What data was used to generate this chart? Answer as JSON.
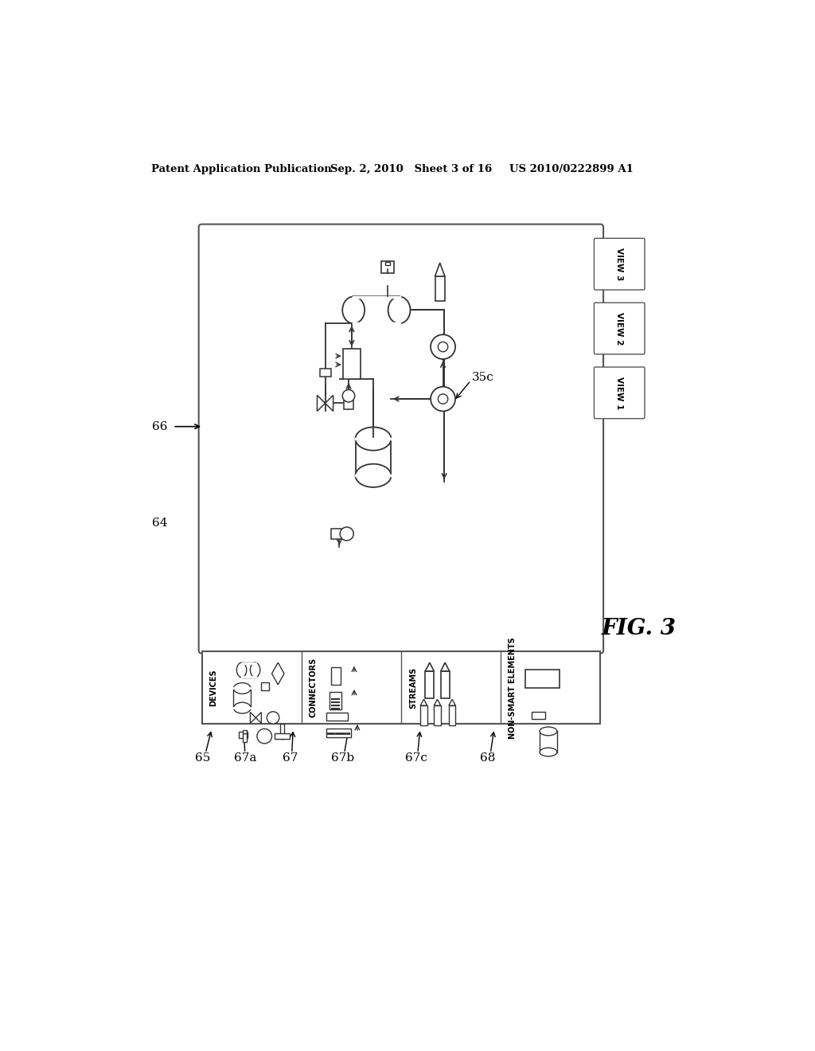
{
  "bg_color": "#ffffff",
  "header_text_left": "Patent Application Publication",
  "header_text_mid": "Sep. 2, 2010   Sheet 3 of 16",
  "header_text_right": "US 2010/0222899 A1",
  "fig_label": "FIG. 3",
  "label_64": "64",
  "label_65": "65",
  "label_66": "66",
  "label_67": "67",
  "label_67a": "67a",
  "label_67b": "67b",
  "label_67c": "67c",
  "label_68": "68",
  "label_35c": "35c",
  "view_labels": [
    "VIEW 3",
    "VIEW 2",
    "VIEW 1"
  ],
  "toolbar_labels": [
    "DEVICES",
    "CONNECTORS",
    "STREAMS",
    "NON-SMART ELEMENTS"
  ]
}
